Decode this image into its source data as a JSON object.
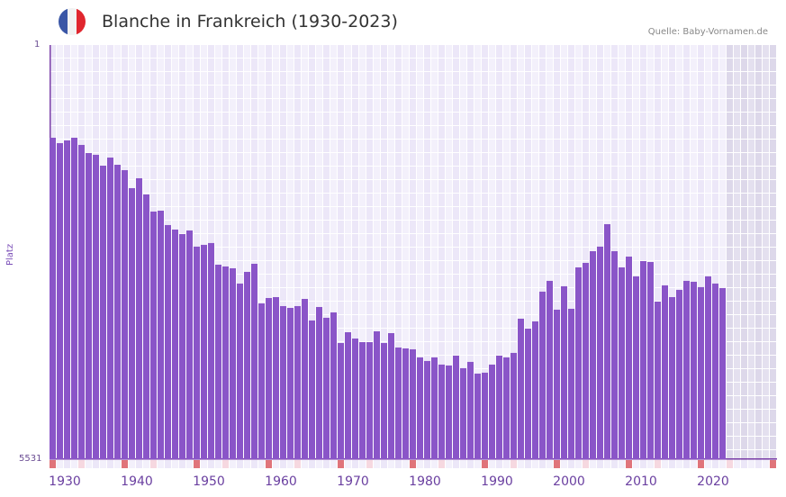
{
  "header": {
    "title": "Blanche in Frankreich (1930-2023)",
    "source": "Quelle: Baby-Vornamen.de",
    "flag_colors": [
      "#3a56a6",
      "#f2f2f2",
      "#e0262e"
    ]
  },
  "axis": {
    "y_top_label": "1",
    "y_bottom_label": "5531",
    "y_title": "Platz",
    "x_ticks": [
      "1930",
      "1940",
      "1950",
      "1960",
      "1970",
      "1980",
      "1990",
      "2000",
      "2010",
      "2020"
    ]
  },
  "colors": {
    "bar": "#8a55c8",
    "grid_bg": "#f0ecfa",
    "future_bg": "#e3dfee",
    "decade_marker": "#e0747a",
    "half_decade_marker": "#f6d8e0"
  },
  "chart_data": {
    "type": "bar",
    "title": "Blanche in Frankreich (1930-2023)",
    "xlabel": "",
    "ylabel": "Platz",
    "ylim": [
      5531,
      1
    ],
    "y_inverted": true,
    "grid": true,
    "x": [
      1930,
      1931,
      1932,
      1933,
      1934,
      1935,
      1936,
      1937,
      1938,
      1939,
      1940,
      1941,
      1942,
      1943,
      1944,
      1945,
      1946,
      1947,
      1948,
      1949,
      1950,
      1951,
      1952,
      1953,
      1954,
      1955,
      1956,
      1957,
      1958,
      1959,
      1960,
      1961,
      1962,
      1963,
      1964,
      1965,
      1966,
      1967,
      1968,
      1969,
      1970,
      1971,
      1972,
      1973,
      1974,
      1975,
      1976,
      1977,
      1978,
      1979,
      1980,
      1981,
      1982,
      1983,
      1984,
      1985,
      1986,
      1987,
      1988,
      1989,
      1990,
      1991,
      1992,
      1993,
      1994,
      1995,
      1996,
      1997,
      1998,
      1999,
      2000,
      2001,
      2002,
      2003,
      2004,
      2005,
      2006,
      2007,
      2008,
      2009,
      2010,
      2011,
      2012,
      2013,
      2014,
      2015,
      2016,
      2017,
      2018,
      2019,
      2020,
      2021,
      2022,
      2023
    ],
    "values": [
      1239,
      1311,
      1275,
      1239,
      1335,
      1443,
      1467,
      1612,
      1504,
      1600,
      1672,
      1912,
      1780,
      1996,
      2225,
      2213,
      2405,
      2465,
      2525,
      2477,
      2693,
      2669,
      2645,
      2934,
      2958,
      2982,
      3186,
      3030,
      2922,
      3451,
      3379,
      3367,
      3487,
      3511,
      3487,
      3391,
      3679,
      3499,
      3643,
      3571,
      3980,
      3836,
      3920,
      3968,
      3968,
      3824,
      3980,
      3848,
      4040,
      4052,
      4064,
      4172,
      4220,
      4172,
      4268,
      4280,
      4148,
      4316,
      4232,
      4388,
      4376,
      4268,
      4148,
      4172,
      4112,
      3655,
      3787,
      3691,
      3294,
      3150,
      3535,
      3222,
      3523,
      2970,
      2910,
      2754,
      2693,
      2393,
      2754,
      2970,
      2826,
      3090,
      2886,
      2898,
      3427,
      3210,
      3367,
      3270,
      3150,
      3162,
      3234,
      3090,
      3186,
      3246
    ],
    "series_name": "Platz"
  }
}
